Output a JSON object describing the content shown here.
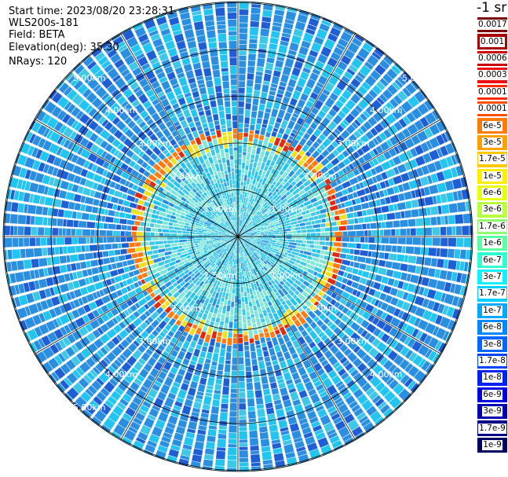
{
  "header": {
    "start_time": "Start time: 2023/08/20 23:28:31",
    "instrument": "WLS200s-181",
    "field": "Field: BETA",
    "elevation": "Elevation(deg): 35.30",
    "nrays": "NRays: 120"
  },
  "colorbar": {
    "unit": "-1 sr",
    "items": [
      {
        "label": "0.0017",
        "color": "#7a0000"
      },
      {
        "label": "0.001",
        "color": "#a80000"
      },
      {
        "label": "0.0006",
        "color": "#cc0000"
      },
      {
        "label": "0.0003",
        "color": "#ee1010"
      },
      {
        "label": "0.00017",
        "color": "#ff2a00"
      },
      {
        "label": "0.0001",
        "color": "#ff4e00"
      },
      {
        "label": "6e-5",
        "color": "#ff7a00"
      },
      {
        "label": "3e-5",
        "color": "#ffa000"
      },
      {
        "label": "1.7e-5",
        "color": "#ffc800"
      },
      {
        "label": "1e-5",
        "color": "#ffee00"
      },
      {
        "label": "6e-6",
        "color": "#e6ff10"
      },
      {
        "label": "3e-6",
        "color": "#b8ff40"
      },
      {
        "label": "1.7e-6",
        "color": "#8cff6a"
      },
      {
        "label": "1e-6",
        "color": "#5cffa0"
      },
      {
        "label": "6e-7",
        "color": "#30ffd0"
      },
      {
        "label": "3e-7",
        "color": "#10f0ff"
      },
      {
        "label": "1.7e-7",
        "color": "#00d0ff"
      },
      {
        "label": "1e-7",
        "color": "#00a8ff"
      },
      {
        "label": "6e-8",
        "color": "#0088ff"
      },
      {
        "label": "3e-8",
        "color": "#0066ff"
      },
      {
        "label": "1.7e-8",
        "color": "#0044ff"
      },
      {
        "label": "1e-8",
        "color": "#0022f0"
      },
      {
        "label": "6e-9",
        "color": "#0000e0"
      },
      {
        "label": "3e-9",
        "color": "#0000b0"
      },
      {
        "label": "1.7e-9",
        "color": "#000088"
      },
      {
        "label": "1e-9",
        "color": "#000060"
      }
    ]
  },
  "ppi": {
    "range_rings_km": [
      1,
      2,
      3,
      4,
      5
    ],
    "ring_labels": {
      "r1": "1.00km",
      "r2": "2.00km",
      "r3": "3.00km",
      "r4": "4.00km",
      "r5": "5.00km",
      "r1_alt": "1.50km"
    },
    "field_colors": {
      "far": "#2a8fe0",
      "far_dark": "#1f5fd6",
      "far_light": "#22c4f0",
      "near": "#3cc8e6",
      "near_light": "#7fe6d8",
      "ring_orange": "#ff7a10",
      "ring_red": "#e02a10",
      "ring_yellow": "#f0e020"
    }
  }
}
